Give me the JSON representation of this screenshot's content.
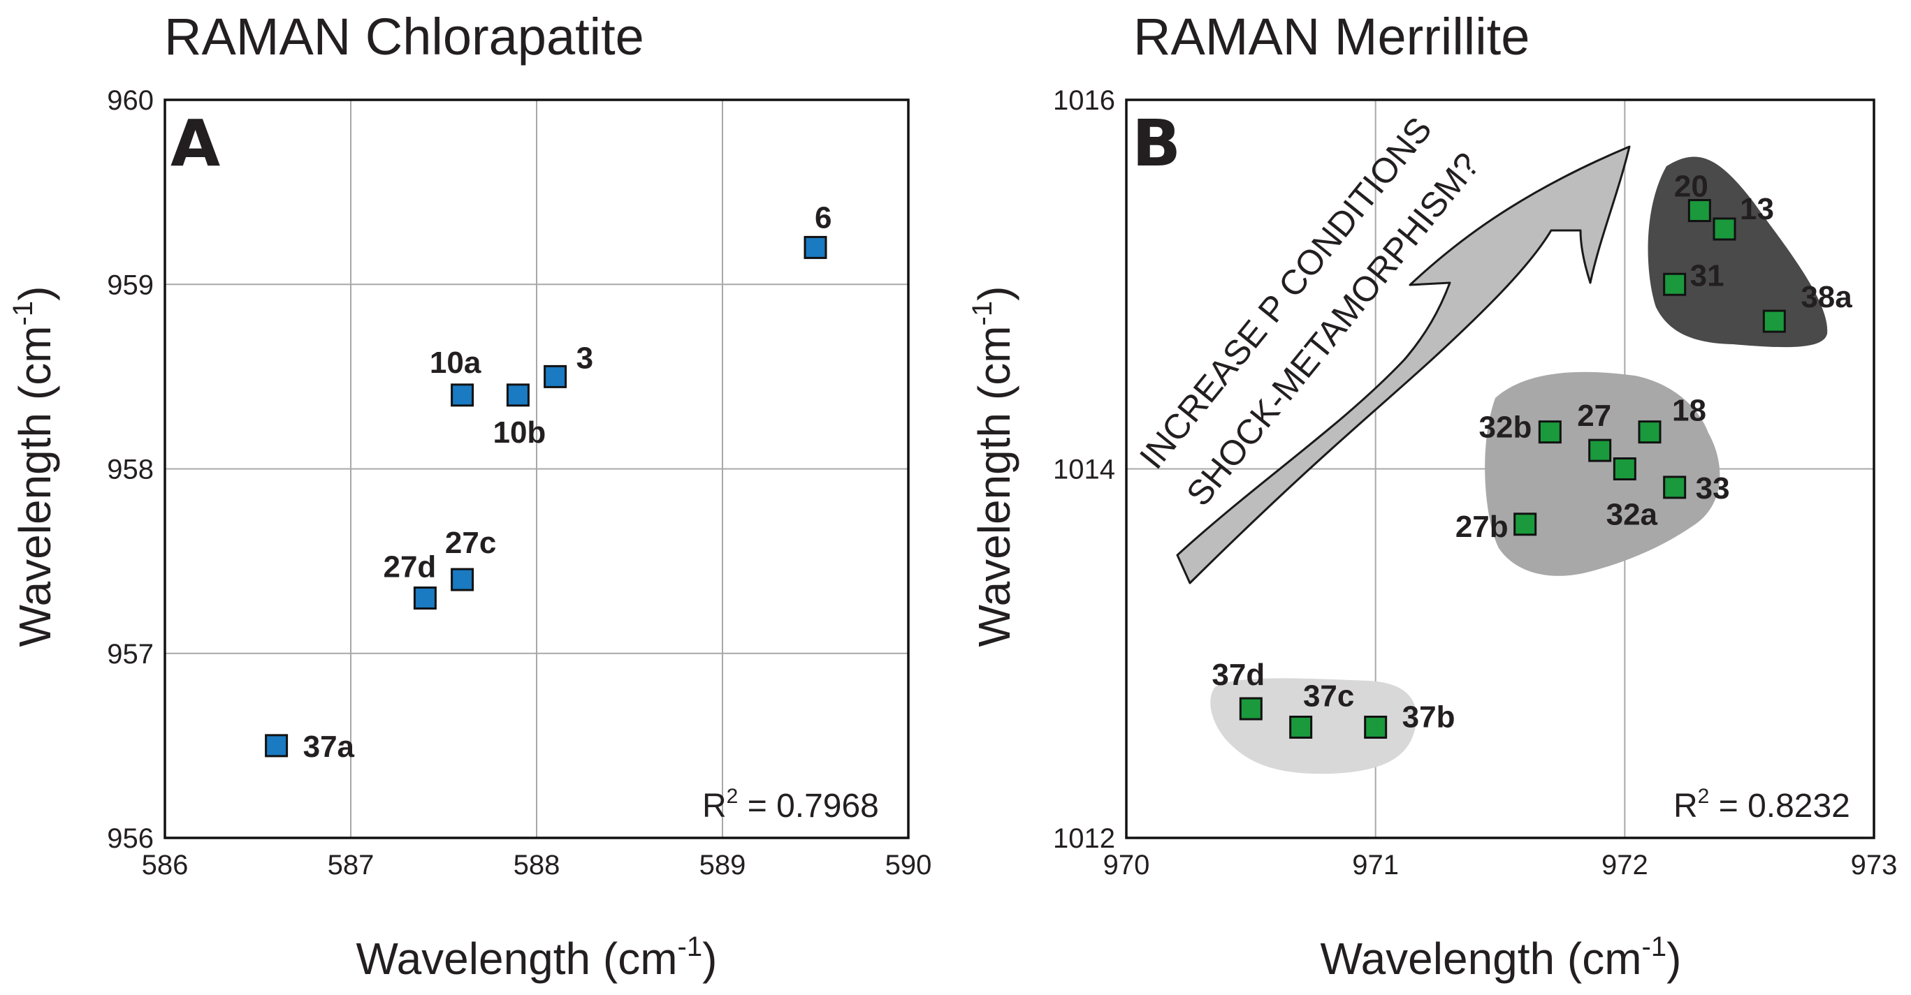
{
  "chart_data": [
    {
      "type": "scatter",
      "title": "RAMAN Chlorapatite",
      "panel_letter": "A",
      "xlabel": "Wavelength (cm",
      "ylabel": "Wavelength (cm",
      "label_superscript": "-1",
      "label_close": ")",
      "xlim": [
        586,
        590
      ],
      "ylim": [
        956,
        960
      ],
      "x_ticks": [
        586,
        587,
        588,
        589,
        590
      ],
      "y_ticks": [
        956,
        957,
        958,
        959,
        960
      ],
      "grid": true,
      "marker_color": "#1a7ac2",
      "r2_prefix": "R",
      "r2_exp": "2",
      "r2_value": " = 0.7968",
      "points": [
        {
          "label": "6",
          "x": 589.5,
          "y": 959.2
        },
        {
          "label": "10a",
          "x": 587.6,
          "y": 958.4
        },
        {
          "label": "10b",
          "x": 587.9,
          "y": 958.4
        },
        {
          "label": "3",
          "x": 588.1,
          "y": 958.5
        },
        {
          "label": "27c",
          "x": 587.6,
          "y": 957.4
        },
        {
          "label": "27d",
          "x": 587.4,
          "y": 957.3
        },
        {
          "label": "37a",
          "x": 586.6,
          "y": 956.5
        }
      ]
    },
    {
      "type": "scatter",
      "title": "RAMAN Merrillite",
      "panel_letter": "B",
      "xlabel": "Wavelength (cm",
      "ylabel": "Wavelength (cm",
      "label_superscript": "-1",
      "label_close": ")",
      "xlim": [
        970,
        973
      ],
      "ylim": [
        1012,
        1016
      ],
      "x_ticks": [
        970,
        971,
        972,
        973
      ],
      "y_ticks": [
        1012,
        1014,
        1016
      ],
      "grid": true,
      "marker_color": "#1a9a3c",
      "r2_prefix": "R",
      "r2_exp": "2",
      "r2_value": " = 0.8232",
      "annotation_line1": "INCREASE P CONDITIONS",
      "annotation_line2": "SHOCK-METAMORPHISM?",
      "points": [
        {
          "label": "20",
          "x": 972.3,
          "y": 1015.4
        },
        {
          "label": "13",
          "x": 972.4,
          "y": 1015.3
        },
        {
          "label": "31",
          "x": 972.2,
          "y": 1015.0
        },
        {
          "label": "38a",
          "x": 972.6,
          "y": 1014.8
        },
        {
          "label": "32b",
          "x": 971.7,
          "y": 1014.2
        },
        {
          "label": "27",
          "x": 971.9,
          "y": 1014.1
        },
        {
          "label": "18",
          "x": 972.1,
          "y": 1014.2
        },
        {
          "label": "32a",
          "x": 972.0,
          "y": 1014.0
        },
        {
          "label": "33",
          "x": 972.2,
          "y": 1013.9
        },
        {
          "label": "27b",
          "x": 971.6,
          "y": 1013.7
        },
        {
          "label": "37d",
          "x": 970.5,
          "y": 1012.7
        },
        {
          "label": "37c",
          "x": 970.7,
          "y": 1012.6
        },
        {
          "label": "37b",
          "x": 971.0,
          "y": 1012.6
        }
      ]
    }
  ]
}
